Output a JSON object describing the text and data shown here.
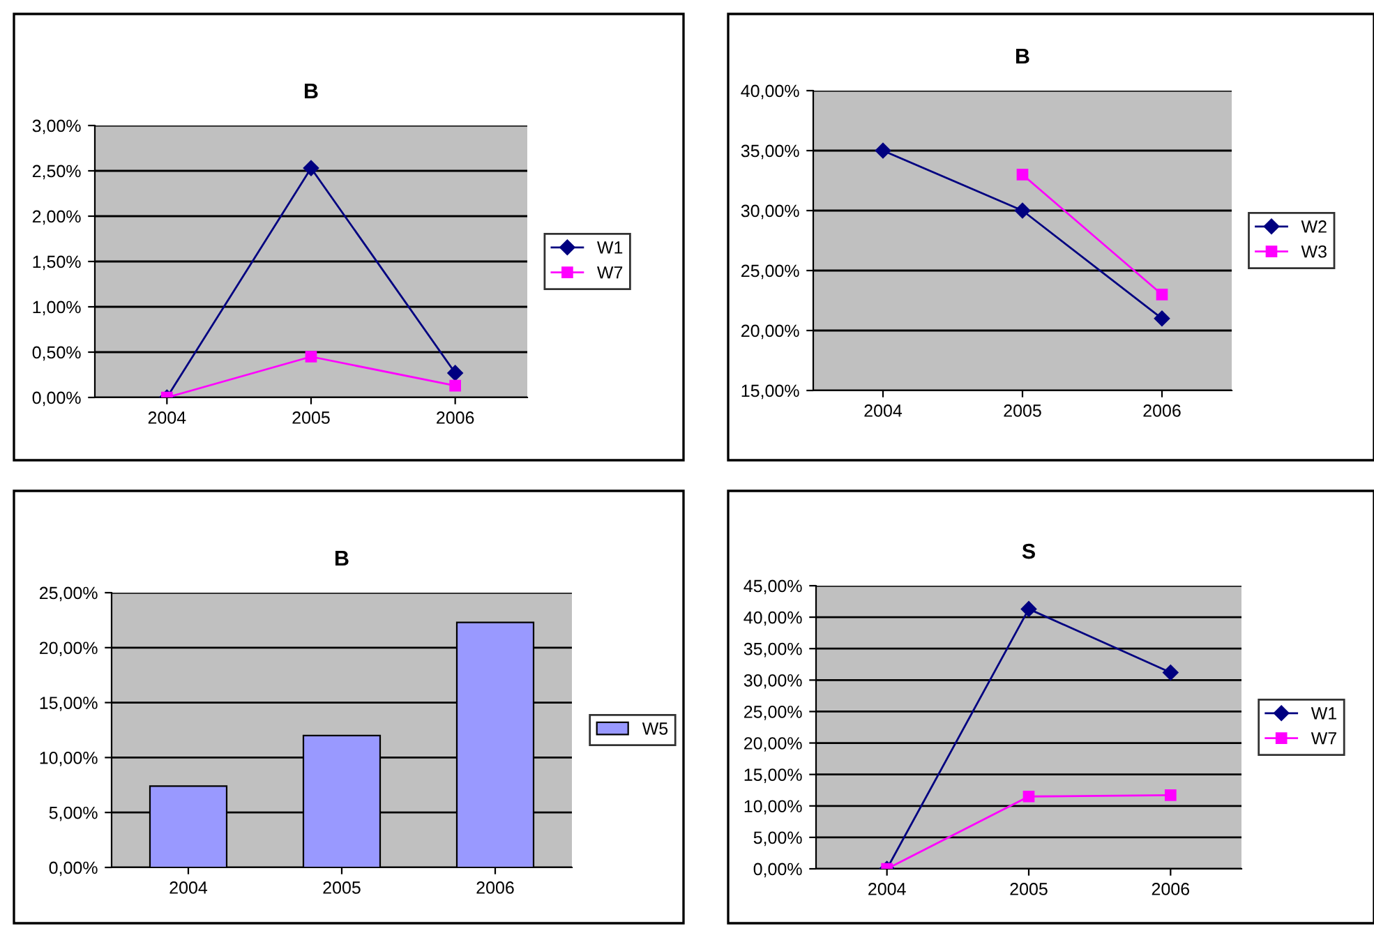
{
  "chart_data": [
    {
      "type": "line",
      "title": "B",
      "categories": [
        "2004",
        "2005",
        "2006"
      ],
      "legend": "right",
      "grid": "y",
      "series": [
        {
          "name": "W1",
          "color": "#000080",
          "marker": "diamond",
          "values": [
            0,
            2.53,
            0.27
          ]
        },
        {
          "name": "W7",
          "color": "#ff00ff",
          "marker": "square",
          "values": [
            0,
            0.45,
            0.13
          ]
        }
      ],
      "ylim": [
        0,
        3
      ],
      "yticks": [
        {
          "value": 0,
          "label": "0,00%"
        },
        {
          "value": 0.5,
          "label": "0,50%"
        },
        {
          "value": 1,
          "label": "1,00%"
        },
        {
          "value": 1.5,
          "label": "1,50%"
        },
        {
          "value": 2,
          "label": "2,00%"
        },
        {
          "value": 2.5,
          "label": "2,50%"
        },
        {
          "value": 3,
          "label": "3,00%"
        }
      ]
    },
    {
      "type": "line",
      "title": "B",
      "categories": [
        "2004",
        "2005",
        "2006"
      ],
      "legend": "right",
      "grid": "y",
      "series": [
        {
          "name": "W2",
          "color": "#000080",
          "marker": "diamond",
          "values": [
            35,
            30,
            21
          ]
        },
        {
          "name": "W3",
          "color": "#ff00ff",
          "marker": "square",
          "values": [
            null,
            33,
            23
          ]
        }
      ],
      "ylim": [
        15,
        40
      ],
      "yticks": [
        {
          "value": 15,
          "label": "15,00%"
        },
        {
          "value": 20,
          "label": "20,00%"
        },
        {
          "value": 25,
          "label": "25,00%"
        },
        {
          "value": 30,
          "label": "30,00%"
        },
        {
          "value": 35,
          "label": "35,00%"
        },
        {
          "value": 40,
          "label": "40,00%"
        }
      ]
    },
    {
      "type": "bar",
      "title": "B",
      "categories": [
        "2004",
        "2005",
        "2006"
      ],
      "legend": "right",
      "grid": "y",
      "series": [
        {
          "name": "W5",
          "color": "#9999ff",
          "values": [
            7.4,
            12,
            22.3
          ]
        }
      ],
      "ylim": [
        0,
        25
      ],
      "yticks": [
        {
          "value": 0,
          "label": "0,00%"
        },
        {
          "value": 5,
          "label": "5,00%"
        },
        {
          "value": 10,
          "label": "10,00%"
        },
        {
          "value": 15,
          "label": "15,00%"
        },
        {
          "value": 20,
          "label": "20,00%"
        },
        {
          "value": 25,
          "label": "25,00%"
        }
      ]
    },
    {
      "type": "line",
      "title": "S",
      "categories": [
        "2004",
        "2005",
        "2006"
      ],
      "legend": "right",
      "grid": "y",
      "series": [
        {
          "name": "W1",
          "color": "#000080",
          "marker": "diamond",
          "values": [
            0,
            41.3,
            31.2
          ]
        },
        {
          "name": "W7",
          "color": "#ff00ff",
          "marker": "square",
          "values": [
            0,
            11.5,
            11.7
          ]
        }
      ],
      "ylim": [
        0,
        45
      ],
      "yticks": [
        {
          "value": 0,
          "label": "0,00%"
        },
        {
          "value": 5,
          "label": "5,00%"
        },
        {
          "value": 10,
          "label": "10,00%"
        },
        {
          "value": 15,
          "label": "15,00%"
        },
        {
          "value": 20,
          "label": "20,00%"
        },
        {
          "value": 25,
          "label": "25,00%"
        },
        {
          "value": 30,
          "label": "30,00%"
        },
        {
          "value": 35,
          "label": "35,00%"
        },
        {
          "value": 40,
          "label": "40,00%"
        },
        {
          "value": 45,
          "label": "45,00%"
        }
      ]
    }
  ]
}
